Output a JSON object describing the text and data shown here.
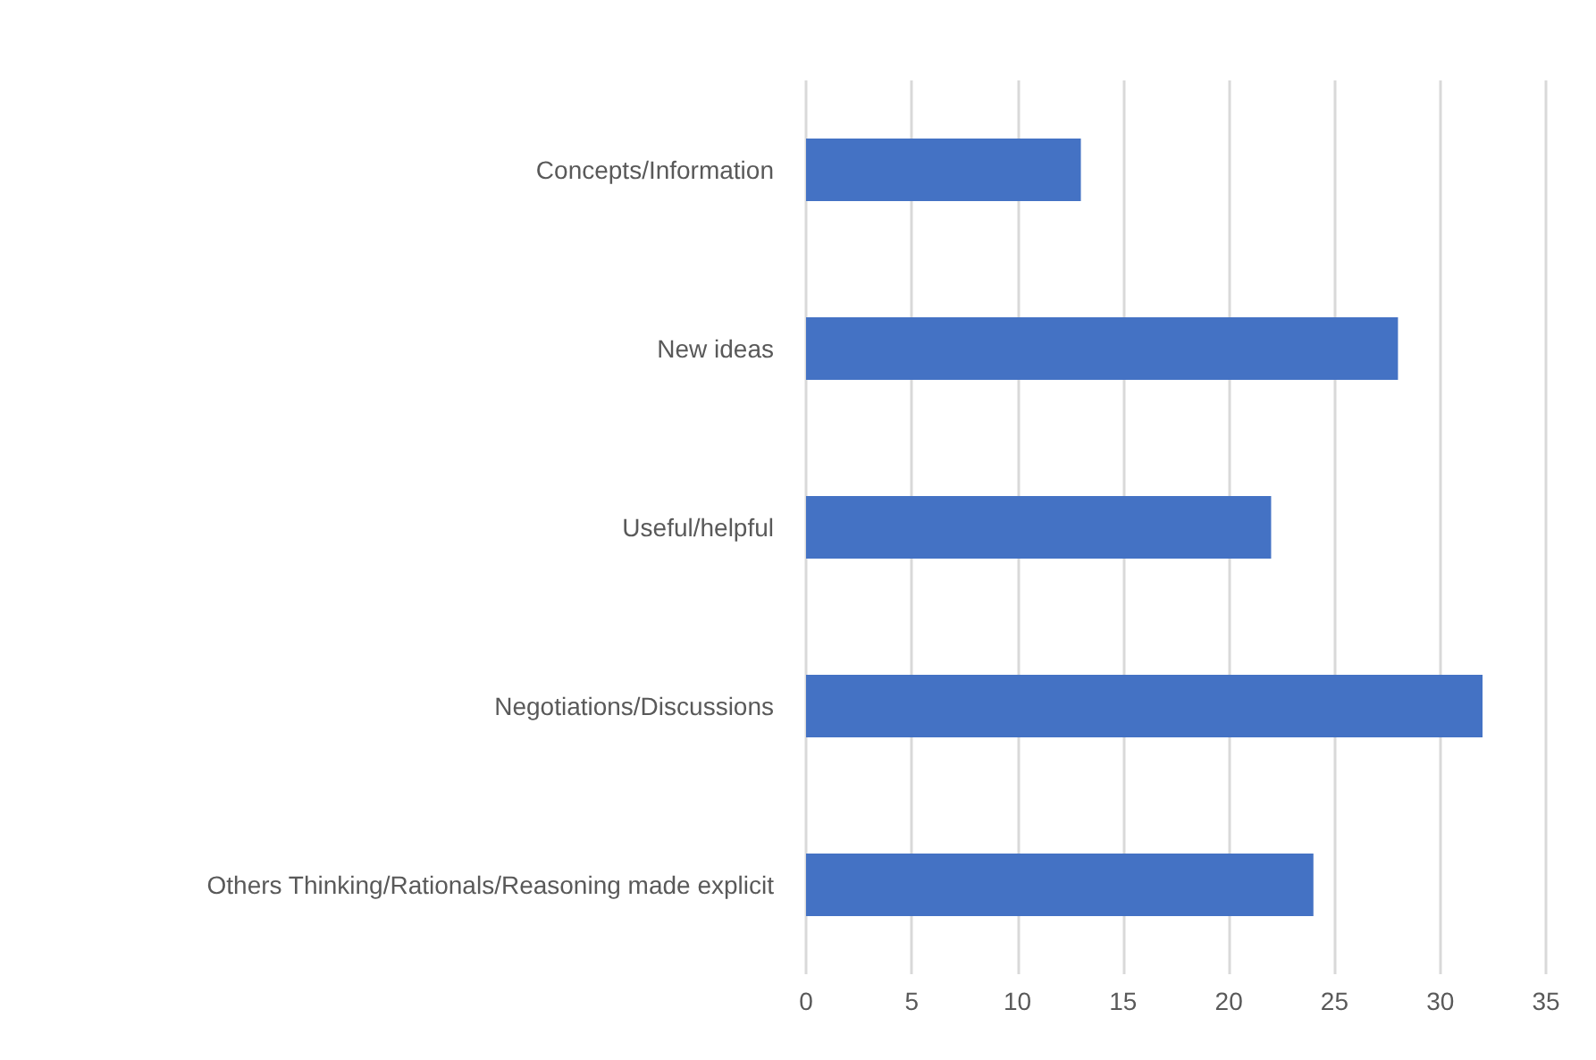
{
  "chart_data": {
    "type": "bar",
    "orientation": "horizontal",
    "categories": [
      "Concepts/Information",
      "New ideas",
      "Useful/helpful",
      "Negotiations/Discussions",
      "Others Thinking/Rationals/Reasoning made explicit"
    ],
    "values": [
      13,
      28,
      22,
      32,
      24
    ],
    "color": "#4472c4",
    "xlim": [
      0,
      35
    ],
    "xticks": [
      0,
      5,
      10,
      15,
      20,
      25,
      30,
      35
    ],
    "grid": "x"
  }
}
